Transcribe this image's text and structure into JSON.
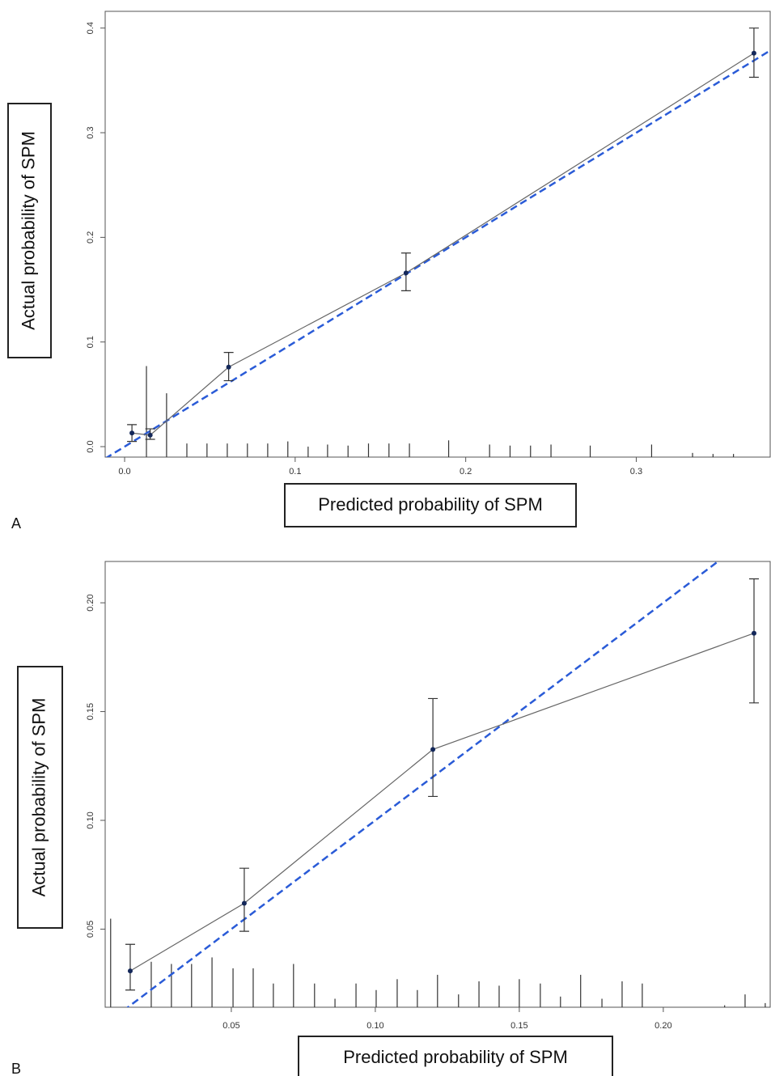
{
  "chart_data": [
    {
      "type": "calibration",
      "panel": "A",
      "xlabel": "Predicted probability of SPM",
      "ylabel": "Actual probability of SPM",
      "xlim": [
        -0.0114,
        0.379
      ],
      "ylim": [
        -0.01,
        0.416
      ],
      "xticks": [
        {
          "value": 0,
          "label": "0.0"
        },
        0.1,
        0.2,
        0.3
      ],
      "yticks": [
        {
          "value": 0,
          "label": "0.0"
        },
        0.1,
        0.2,
        0.3,
        0.4
      ],
      "point_color": "#14285a",
      "line_color": "#666666",
      "ideal_color": "#2a5bd7",
      "x": [
        0.0043,
        0.015,
        0.061,
        0.165,
        0.369
      ],
      "values": [
        0.013,
        0.011,
        0.076,
        0.166,
        0.376
      ],
      "ci_low": [
        0.005,
        0.007,
        0.063,
        0.149,
        0.353
      ],
      "ci_high": [
        0.021,
        0.017,
        0.09,
        0.185,
        0.4
      ],
      "rug": {
        "x": [
          0.0128,
          0.0246,
          0.0365,
          0.0483,
          0.0602,
          0.072,
          0.0839,
          0.0957,
          0.1076,
          0.119,
          0.131,
          0.143,
          0.155,
          0.167,
          0.19,
          0.214,
          0.226,
          0.238,
          0.25,
          0.273,
          0.309,
          0.333,
          0.345,
          0.357
        ],
        "values": [
          0.077,
          0.051,
          0.003,
          0.003,
          0.003,
          0.003,
          0.003,
          0.005,
          0.0,
          0.002,
          0.001,
          0.003,
          0.003,
          0.003,
          0.006,
          0.002,
          0.001,
          0.001,
          0.002,
          0.001,
          0.002,
          -0.006,
          -0.007,
          -0.007
        ]
      }
    },
    {
      "type": "calibration",
      "panel": "B",
      "xlabel": "Predicted probability of SPM",
      "ylabel": "Actual probability of SPM",
      "xlim": [
        0.0062,
        0.2374
      ],
      "ylim": [
        0.0141,
        0.219
      ],
      "xticks": [
        0.05,
        {
          "value": 0.1,
          "label": "0.10"
        },
        0.15,
        {
          "value": 0.2,
          "label": "0.20"
        }
      ],
      "yticks": [
        0.05,
        {
          "value": 0.1,
          "label": "0.10"
        },
        0.15,
        {
          "value": 0.2,
          "label": "0.20"
        }
      ],
      "point_color": "#14285a",
      "line_color": "#666666",
      "ideal_color": "#2a5bd7",
      "x": [
        0.0149,
        0.0545,
        0.12,
        0.2315
      ],
      "values": [
        0.0308,
        0.0619,
        0.1326,
        0.186
      ],
      "ci_low": [
        0.022,
        0.049,
        0.111,
        0.154
      ],
      "ci_high": [
        0.043,
        0.078,
        0.156,
        0.211
      ],
      "rug": {
        "x": [
          0.0081,
          0.0222,
          0.0292,
          0.0362,
          0.0433,
          0.0506,
          0.0576,
          0.0646,
          0.0716,
          0.0789,
          0.086,
          0.0933,
          0.1003,
          0.1076,
          0.1146,
          0.1216,
          0.1289,
          0.136,
          0.143,
          0.15,
          0.1573,
          0.1643,
          0.1713,
          0.1787,
          0.1857,
          0.1927,
          0.2213,
          0.2284,
          0.2354
        ],
        "values": [
          0.0548,
          0.035,
          0.034,
          0.034,
          0.037,
          0.032,
          0.032,
          0.025,
          0.034,
          0.025,
          0.018,
          0.025,
          0.022,
          0.027,
          0.022,
          0.029,
          0.02,
          0.026,
          0.024,
          0.027,
          0.025,
          0.019,
          0.029,
          0.018,
          0.026,
          0.025,
          0.015,
          0.02,
          0.016
        ]
      }
    }
  ]
}
